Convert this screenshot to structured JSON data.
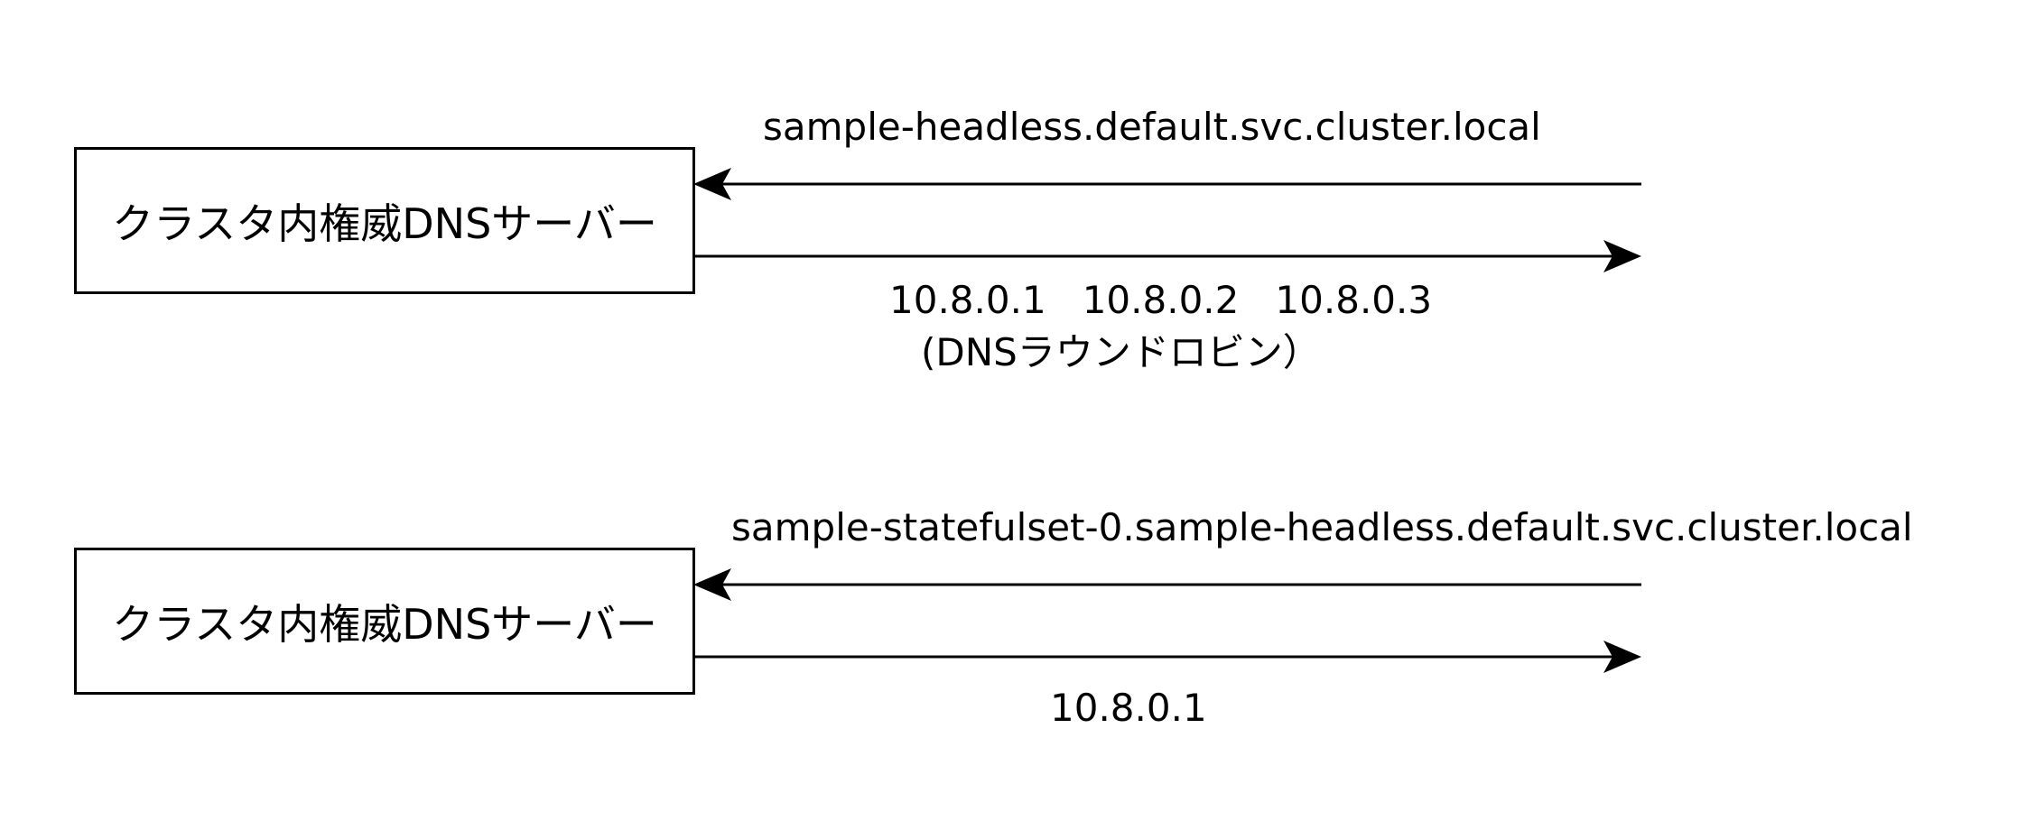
{
  "rows": [
    {
      "server_label": "クラスタ内権威DNSサーバー",
      "query_label": "sample-headless.default.svc.cluster.local",
      "response_line1": "10.8.0.1   10.8.0.2   10.8.0.3",
      "response_line2": "(DNSラウンドロビン）"
    },
    {
      "server_label": "クラスタ内権威DNSサーバー",
      "query_label": "sample-statefulset-0.sample-headless.default.svc.cluster.local",
      "response_line1": "10.8.0.1"
    }
  ]
}
